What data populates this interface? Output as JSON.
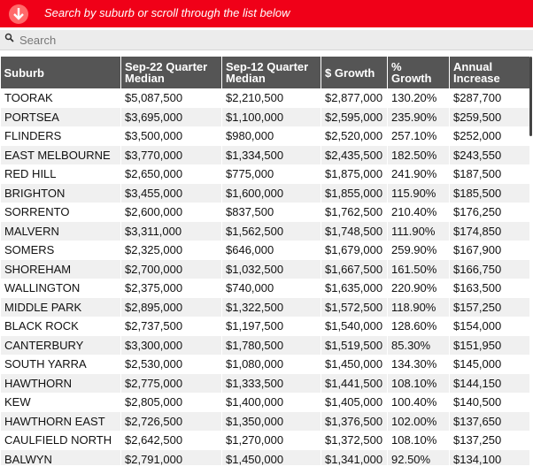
{
  "banner": {
    "text": "Search by suburb or scroll through the list below"
  },
  "search": {
    "placeholder": "Search"
  },
  "table": {
    "headers": [
      "Suburb",
      "Sep-22 Quarter Median",
      "Sep-12 Quarter Median",
      "$ Growth",
      "% Growth",
      "Annual Increase"
    ],
    "rows": [
      [
        "TOORAK",
        "$5,087,500",
        "$2,210,500",
        "$2,877,000",
        "130.20%",
        "$287,700"
      ],
      [
        "PORTSEA",
        "$3,695,000",
        "$1,100,000",
        "$2,595,000",
        "235.90%",
        "$259,500"
      ],
      [
        "FLINDERS",
        "$3,500,000",
        "$980,000",
        "$2,520,000",
        "257.10%",
        "$252,000"
      ],
      [
        "EAST MELBOURNE",
        "$3,770,000",
        "$1,334,500",
        "$2,435,500",
        "182.50%",
        "$243,550"
      ],
      [
        "RED HILL",
        "$2,650,000",
        "$775,000",
        "$1,875,000",
        "241.90%",
        "$187,500"
      ],
      [
        "BRIGHTON",
        "$3,455,000",
        "$1,600,000",
        "$1,855,000",
        "115.90%",
        "$185,500"
      ],
      [
        "SORRENTO",
        "$2,600,000",
        "$837,500",
        "$1,762,500",
        "210.40%",
        "$176,250"
      ],
      [
        "MALVERN",
        "$3,311,000",
        "$1,562,500",
        "$1,748,500",
        "111.90%",
        "$174,850"
      ],
      [
        "SOMERS",
        "$2,325,000",
        "$646,000",
        "$1,679,000",
        "259.90%",
        "$167,900"
      ],
      [
        "SHOREHAM",
        "$2,700,000",
        "$1,032,500",
        "$1,667,500",
        "161.50%",
        "$166,750"
      ],
      [
        "WALLINGTON",
        "$2,375,000",
        "$740,000",
        "$1,635,000",
        "220.90%",
        "$163,500"
      ],
      [
        "MIDDLE PARK",
        "$2,895,000",
        "$1,322,500",
        "$1,572,500",
        "118.90%",
        "$157,250"
      ],
      [
        "BLACK ROCK",
        "$2,737,500",
        "$1,197,500",
        "$1,540,000",
        "128.60%",
        "$154,000"
      ],
      [
        "CANTERBURY",
        "$3,300,000",
        "$1,780,500",
        "$1,519,500",
        "85.30%",
        "$151,950"
      ],
      [
        "SOUTH YARRA",
        "$2,530,000",
        "$1,080,000",
        "$1,450,000",
        "134.30%",
        "$145,000"
      ],
      [
        "HAWTHORN",
        "$2,775,000",
        "$1,333,500",
        "$1,441,500",
        "108.10%",
        "$144,150"
      ],
      [
        "KEW",
        "$2,805,000",
        "$1,400,000",
        "$1,405,000",
        "100.40%",
        "$140,500"
      ],
      [
        "HAWTHORN EAST",
        "$2,726,500",
        "$1,350,000",
        "$1,376,500",
        "102.00%",
        "$137,650"
      ],
      [
        "CAULFIELD NORTH",
        "$2,642,500",
        "$1,270,000",
        "$1,372,500",
        "108.10%",
        "$137,250"
      ],
      [
        "BALWYN",
        "$2,791,000",
        "$1,450,000",
        "$1,341,000",
        "92.50%",
        "$134,100"
      ]
    ]
  }
}
